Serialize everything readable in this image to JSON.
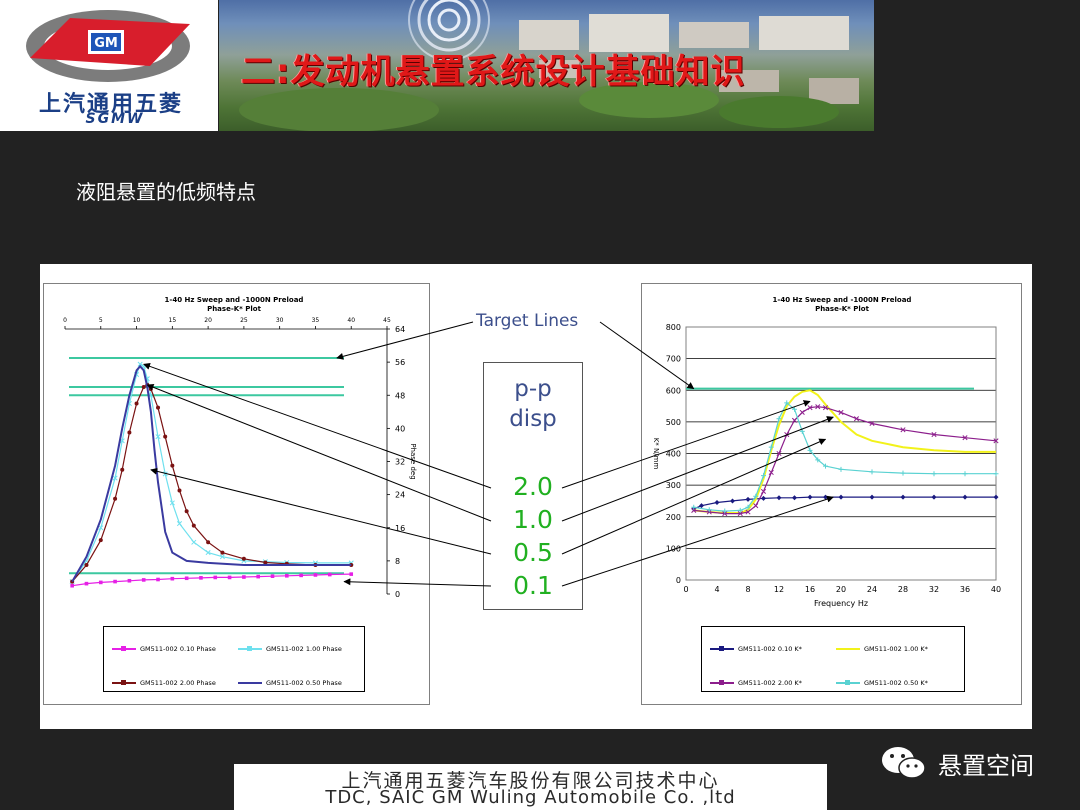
{
  "header": {
    "logo_badge": "GM",
    "logo_cn": "上汽通用五菱",
    "logo_en": "SGMW",
    "title": "二:发动机悬置系统设计基础知识"
  },
  "slide": {
    "subtitle": "液阻悬置的低频特点"
  },
  "annotation": {
    "target_label": "Target Lines",
    "disp_head1": "p-p",
    "disp_head2": "disp",
    "disp_values": [
      "2.0",
      "1.0",
      "0.5",
      "0.1"
    ],
    "target_color": "#3cc8a0",
    "label_color": "#3c4f8c",
    "value_color": "#21b021"
  },
  "chart_data": [
    {
      "type": "line",
      "title": "1-40 Hz Sweep and -1000N Preload",
      "subtitle": "Phase-K* Plot",
      "ylabel": "Phase deg",
      "xlim": [
        0,
        45
      ],
      "ylim": [
        0,
        64
      ],
      "x_ticks": [
        "0",
        "5",
        "10",
        "15",
        "20",
        "25",
        "30",
        "35",
        "40",
        "45"
      ],
      "y_ticks": [
        "0",
        "8",
        "16",
        "24",
        "32",
        "40",
        "48",
        "56",
        "64"
      ],
      "target_lines": [
        57,
        50,
        48,
        5
      ],
      "series": [
        {
          "name": "GM511-002 0.10 Phase",
          "color": "#e620e6",
          "marker": "square",
          "x": [
            1,
            3,
            5,
            7,
            9,
            11,
            13,
            15,
            17,
            19,
            21,
            23,
            25,
            27,
            29,
            31,
            33,
            35,
            37,
            40
          ],
          "y": [
            2,
            2.5,
            2.8,
            3,
            3.2,
            3.4,
            3.5,
            3.7,
            3.8,
            3.9,
            4,
            4,
            4.1,
            4.2,
            4.3,
            4.4,
            4.5,
            4.6,
            4.7,
            4.8
          ]
        },
        {
          "name": "GM511-002 1.00 Phase",
          "color": "#6ee0ee",
          "marker": "x",
          "x": [
            1,
            3,
            5,
            7,
            8,
            9,
            10,
            10.5,
            11,
            11.5,
            12,
            13,
            14,
            15,
            16,
            18,
            20,
            22,
            25,
            28,
            31,
            35,
            40
          ],
          "y": [
            3,
            8,
            16,
            28,
            37,
            46,
            53,
            55.5,
            55,
            52,
            48,
            38,
            29,
            22,
            17,
            12.5,
            10,
            9,
            8,
            7.8,
            7.6,
            7.5,
            7.5
          ]
        },
        {
          "name": "GM511-002 2.00 Phase",
          "color": "#7a1212",
          "marker": "dot",
          "x": [
            1,
            3,
            5,
            7,
            8,
            9,
            10,
            11,
            11.5,
            12,
            13,
            14,
            15,
            16,
            17,
            18,
            20,
            22,
            25,
            28,
            31,
            35,
            40
          ],
          "y": [
            3,
            7,
            13,
            23,
            30,
            39,
            46,
            50,
            50.5,
            49.5,
            45,
            38,
            31,
            25,
            20,
            16.5,
            12.5,
            10,
            8.5,
            7.6,
            7.3,
            7,
            7
          ]
        },
        {
          "name": "GM511-002 0.50 Phase",
          "color": "#3a3aa0",
          "marker": "none",
          "x": [
            1,
            3,
            5,
            7,
            8,
            9,
            10,
            10.5,
            11,
            11.5,
            12,
            12.5,
            13,
            14,
            15,
            17,
            20,
            25,
            30,
            35,
            40
          ],
          "y": [
            3,
            9,
            18,
            31,
            40,
            48,
            54,
            55,
            54,
            50,
            44,
            35,
            27,
            15,
            10,
            8,
            7.5,
            7,
            7,
            7,
            7
          ]
        }
      ]
    },
    {
      "type": "line",
      "title": "1-40 Hz Sweep and -1000N Preload",
      "subtitle": "Phase-K* Plot",
      "xlabel": "Frequency Hz",
      "ylabel": "K* N/mm",
      "xlim": [
        0,
        40
      ],
      "ylim": [
        0,
        800
      ],
      "x_ticks": [
        "0",
        "4",
        "8",
        "12",
        "16",
        "20",
        "24",
        "28",
        "32",
        "36",
        "40"
      ],
      "y_ticks": [
        "0",
        "100",
        "200",
        "300",
        "400",
        "500",
        "600",
        "700",
        "800"
      ],
      "target_lines": [
        605
      ],
      "series": [
        {
          "name": "GM511-002 0.10 K*",
          "color": "#1a1a80",
          "marker": "diamond",
          "x": [
            1,
            2,
            4,
            6,
            8,
            10,
            12,
            14,
            16,
            18,
            20,
            24,
            28,
            32,
            36,
            40
          ],
          "y": [
            225,
            235,
            245,
            250,
            255,
            258,
            260,
            260,
            262,
            262,
            262,
            262,
            262,
            262,
            262,
            262
          ]
        },
        {
          "name": "GM511-002 1.00 K*",
          "color": "#f2f21a",
          "marker": "none",
          "x": [
            1,
            3,
            5,
            7,
            8,
            9,
            10,
            11,
            12,
            13,
            14,
            15,
            16,
            17,
            18,
            20,
            22,
            24,
            28,
            32,
            36,
            40
          ],
          "y": [
            220,
            215,
            212,
            212,
            222,
            255,
            320,
            410,
            490,
            550,
            580,
            595,
            600,
            585,
            555,
            500,
            460,
            440,
            420,
            410,
            405,
            405
          ]
        },
        {
          "name": "GM511-002 2.00 K*",
          "color": "#8c1e8c",
          "marker": "x",
          "x": [
            1,
            3,
            5,
            7,
            8,
            9,
            10,
            11,
            12,
            13,
            14,
            15,
            16,
            17,
            18,
            20,
            22,
            24,
            28,
            32,
            36,
            40
          ],
          "y": [
            220,
            215,
            210,
            210,
            215,
            235,
            280,
            340,
            400,
            460,
            505,
            530,
            545,
            548,
            545,
            530,
            510,
            495,
            475,
            460,
            450,
            440
          ]
        },
        {
          "name": "GM511-002 0.50 K*",
          "color": "#5ad2d2",
          "marker": "plus",
          "x": [
            1,
            3,
            5,
            7,
            8,
            9,
            10,
            11,
            12,
            13,
            14,
            15,
            16,
            17,
            18,
            20,
            24,
            28,
            32,
            36,
            40
          ],
          "y": [
            230,
            222,
            218,
            220,
            230,
            265,
            330,
            420,
            510,
            560,
            540,
            470,
            410,
            380,
            360,
            350,
            342,
            338,
            336,
            336,
            336
          ]
        }
      ]
    }
  ],
  "wechat": {
    "name": "悬置空间"
  },
  "footer": {
    "cn": "上汽通用五菱汽车股份有限公司技术中心",
    "en": "TDC, SAIC GM Wuling Automobile Co. ,ltd"
  }
}
